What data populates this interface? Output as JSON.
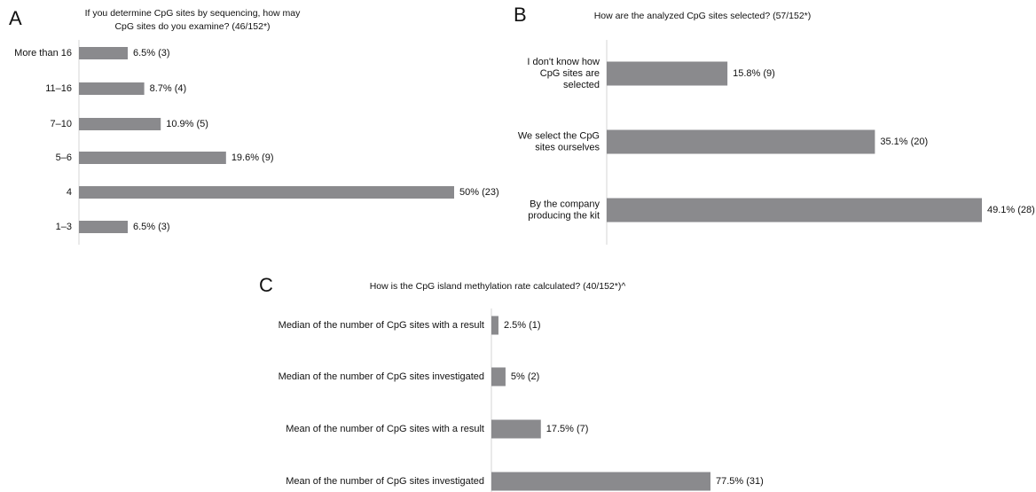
{
  "chart_data": [
    {
      "type": "bar",
      "orientation": "horizontal",
      "panel": "A",
      "title_lines": [
        "If you determine CpG sites by sequencing, how may",
        "CpG sites do you examine? (46/152*)"
      ],
      "categories": [
        "More than 16",
        "11–16",
        "7–10",
        "5–6",
        "4",
        "1–3"
      ],
      "values": [
        6.5,
        8.7,
        10.9,
        19.6,
        50,
        6.5
      ],
      "value_labels": [
        "6.5% (3)",
        "8.7% (4)",
        "10.9% (5)",
        "19.6% (9)",
        "50% (23)",
        "6.5% (3)"
      ],
      "xlim": [
        0,
        50
      ],
      "grid": false
    },
    {
      "type": "bar",
      "orientation": "horizontal",
      "panel": "B",
      "title_lines": [
        "How are the analyzed CpG sites selected? (57/152*)"
      ],
      "categories": [
        [
          "I don't know how",
          "CpG sites are",
          "selected"
        ],
        [
          "We select the CpG",
          "sites ourselves"
        ],
        [
          "By the company",
          "producing the kit"
        ]
      ],
      "values": [
        15.8,
        35.1,
        49.1
      ],
      "value_labels": [
        "15.8% (9)",
        "35.1% (20)",
        "49.1% (28)"
      ],
      "xlim": [
        0,
        49.1
      ],
      "grid": false
    },
    {
      "type": "bar",
      "orientation": "horizontal",
      "panel": "C",
      "title_lines": [
        "How is the CpG island methylation rate calculated? (40/152*)^"
      ],
      "categories": [
        "Median of the number of CpG sites with a result",
        "Median of the number of CpG sites investigated",
        "Mean of the number of CpG sites with a result",
        "Mean of the number of CpG sites investigated"
      ],
      "values": [
        2.5,
        5,
        17.5,
        77.5
      ],
      "value_labels": [
        "2.5% (1)",
        "5% (2)",
        "17.5% (7)",
        "77.5% (31)"
      ],
      "xlim": [
        0,
        77.5
      ],
      "grid": false
    }
  ],
  "colors": {
    "bar": "#8a8a8d",
    "axis": "#d6d6d6",
    "text": "#111111"
  }
}
